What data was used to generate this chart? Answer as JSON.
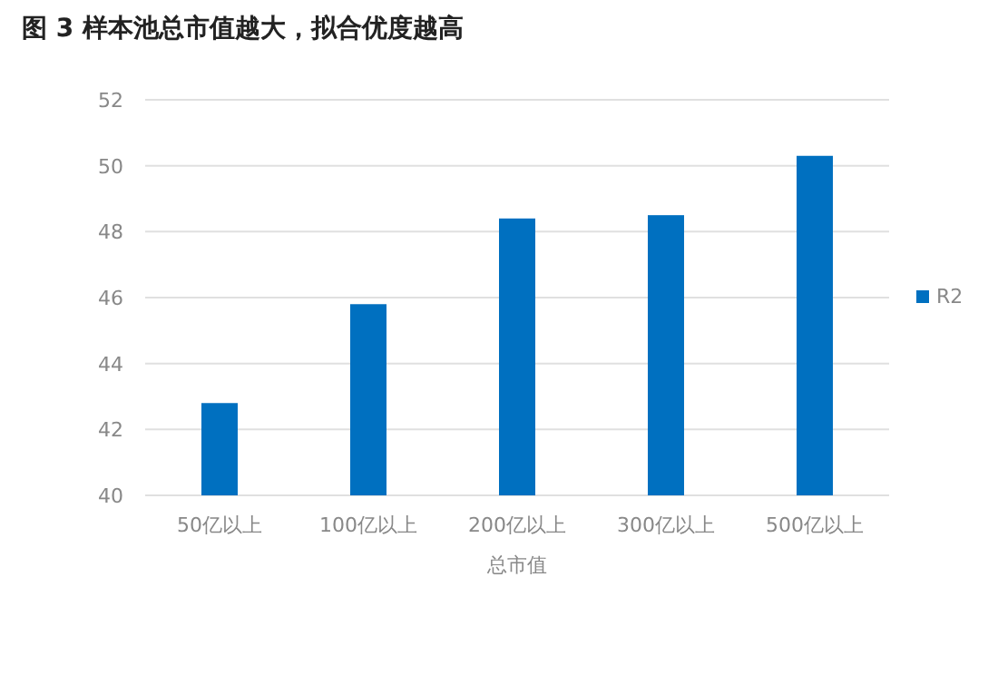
{
  "chart_data": {
    "type": "bar",
    "title": "图 3 样本池总市值越大，拟合优度越高",
    "xlabel": "总市值",
    "categories": [
      "50亿以上",
      "100亿以上",
      "200亿以上",
      "300亿以上",
      "500亿以上"
    ],
    "series": [
      {
        "name": "R2",
        "color": "#0070c0",
        "values": [
          42.8,
          45.8,
          48.4,
          48.5,
          50.3
        ]
      }
    ],
    "ylim": [
      40,
      52
    ],
    "yticks": [
      40,
      42,
      44,
      46,
      48,
      50,
      52
    ],
    "grid": "y",
    "legend": "right"
  }
}
